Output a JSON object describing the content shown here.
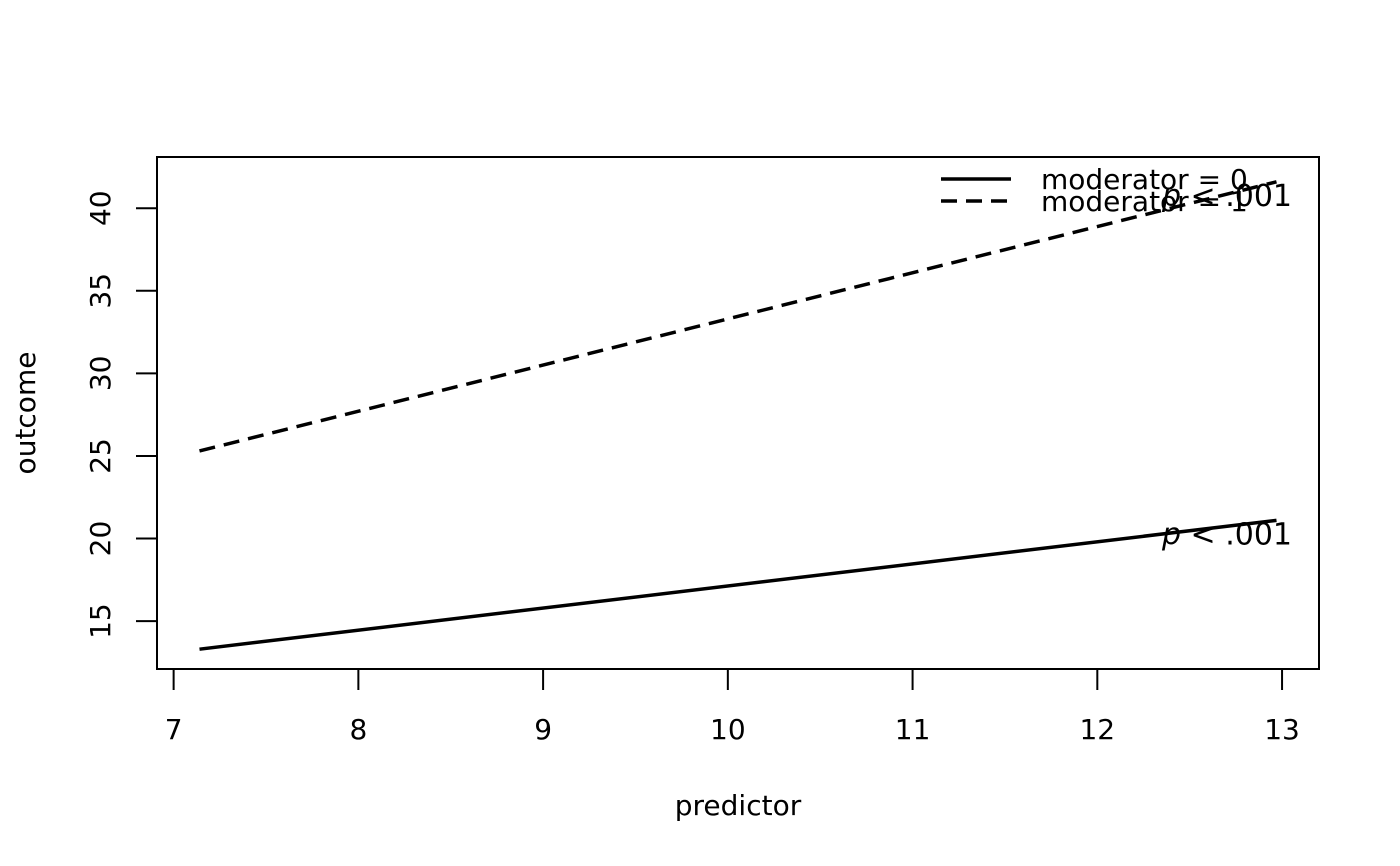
{
  "chart_data": {
    "type": "line",
    "title": "",
    "xlabel": "predictor",
    "ylabel": "outcome",
    "xlim": [
      6.91,
      13.2
    ],
    "ylim": [
      12.1,
      43.1
    ],
    "x_ticks": [
      7,
      8,
      9,
      10,
      11,
      12,
      13
    ],
    "y_ticks": [
      15,
      20,
      25,
      30,
      35,
      40
    ],
    "grid": false,
    "legend_position": "top-right",
    "series": [
      {
        "name": "moderator = 0",
        "line_style": "solid",
        "color": "#000000",
        "x": [
          7.14,
          12.97
        ],
        "y": [
          13.3,
          21.1
        ],
        "annotation": {
          "p_symbol": "p",
          "text": " < .001"
        }
      },
      {
        "name": "moderator = 1",
        "line_style": "dashed",
        "color": "#000000",
        "x": [
          7.14,
          12.97
        ],
        "y": [
          25.3,
          41.6
        ],
        "annotation": {
          "p_symbol": "p",
          "text": " < .001"
        }
      }
    ]
  }
}
